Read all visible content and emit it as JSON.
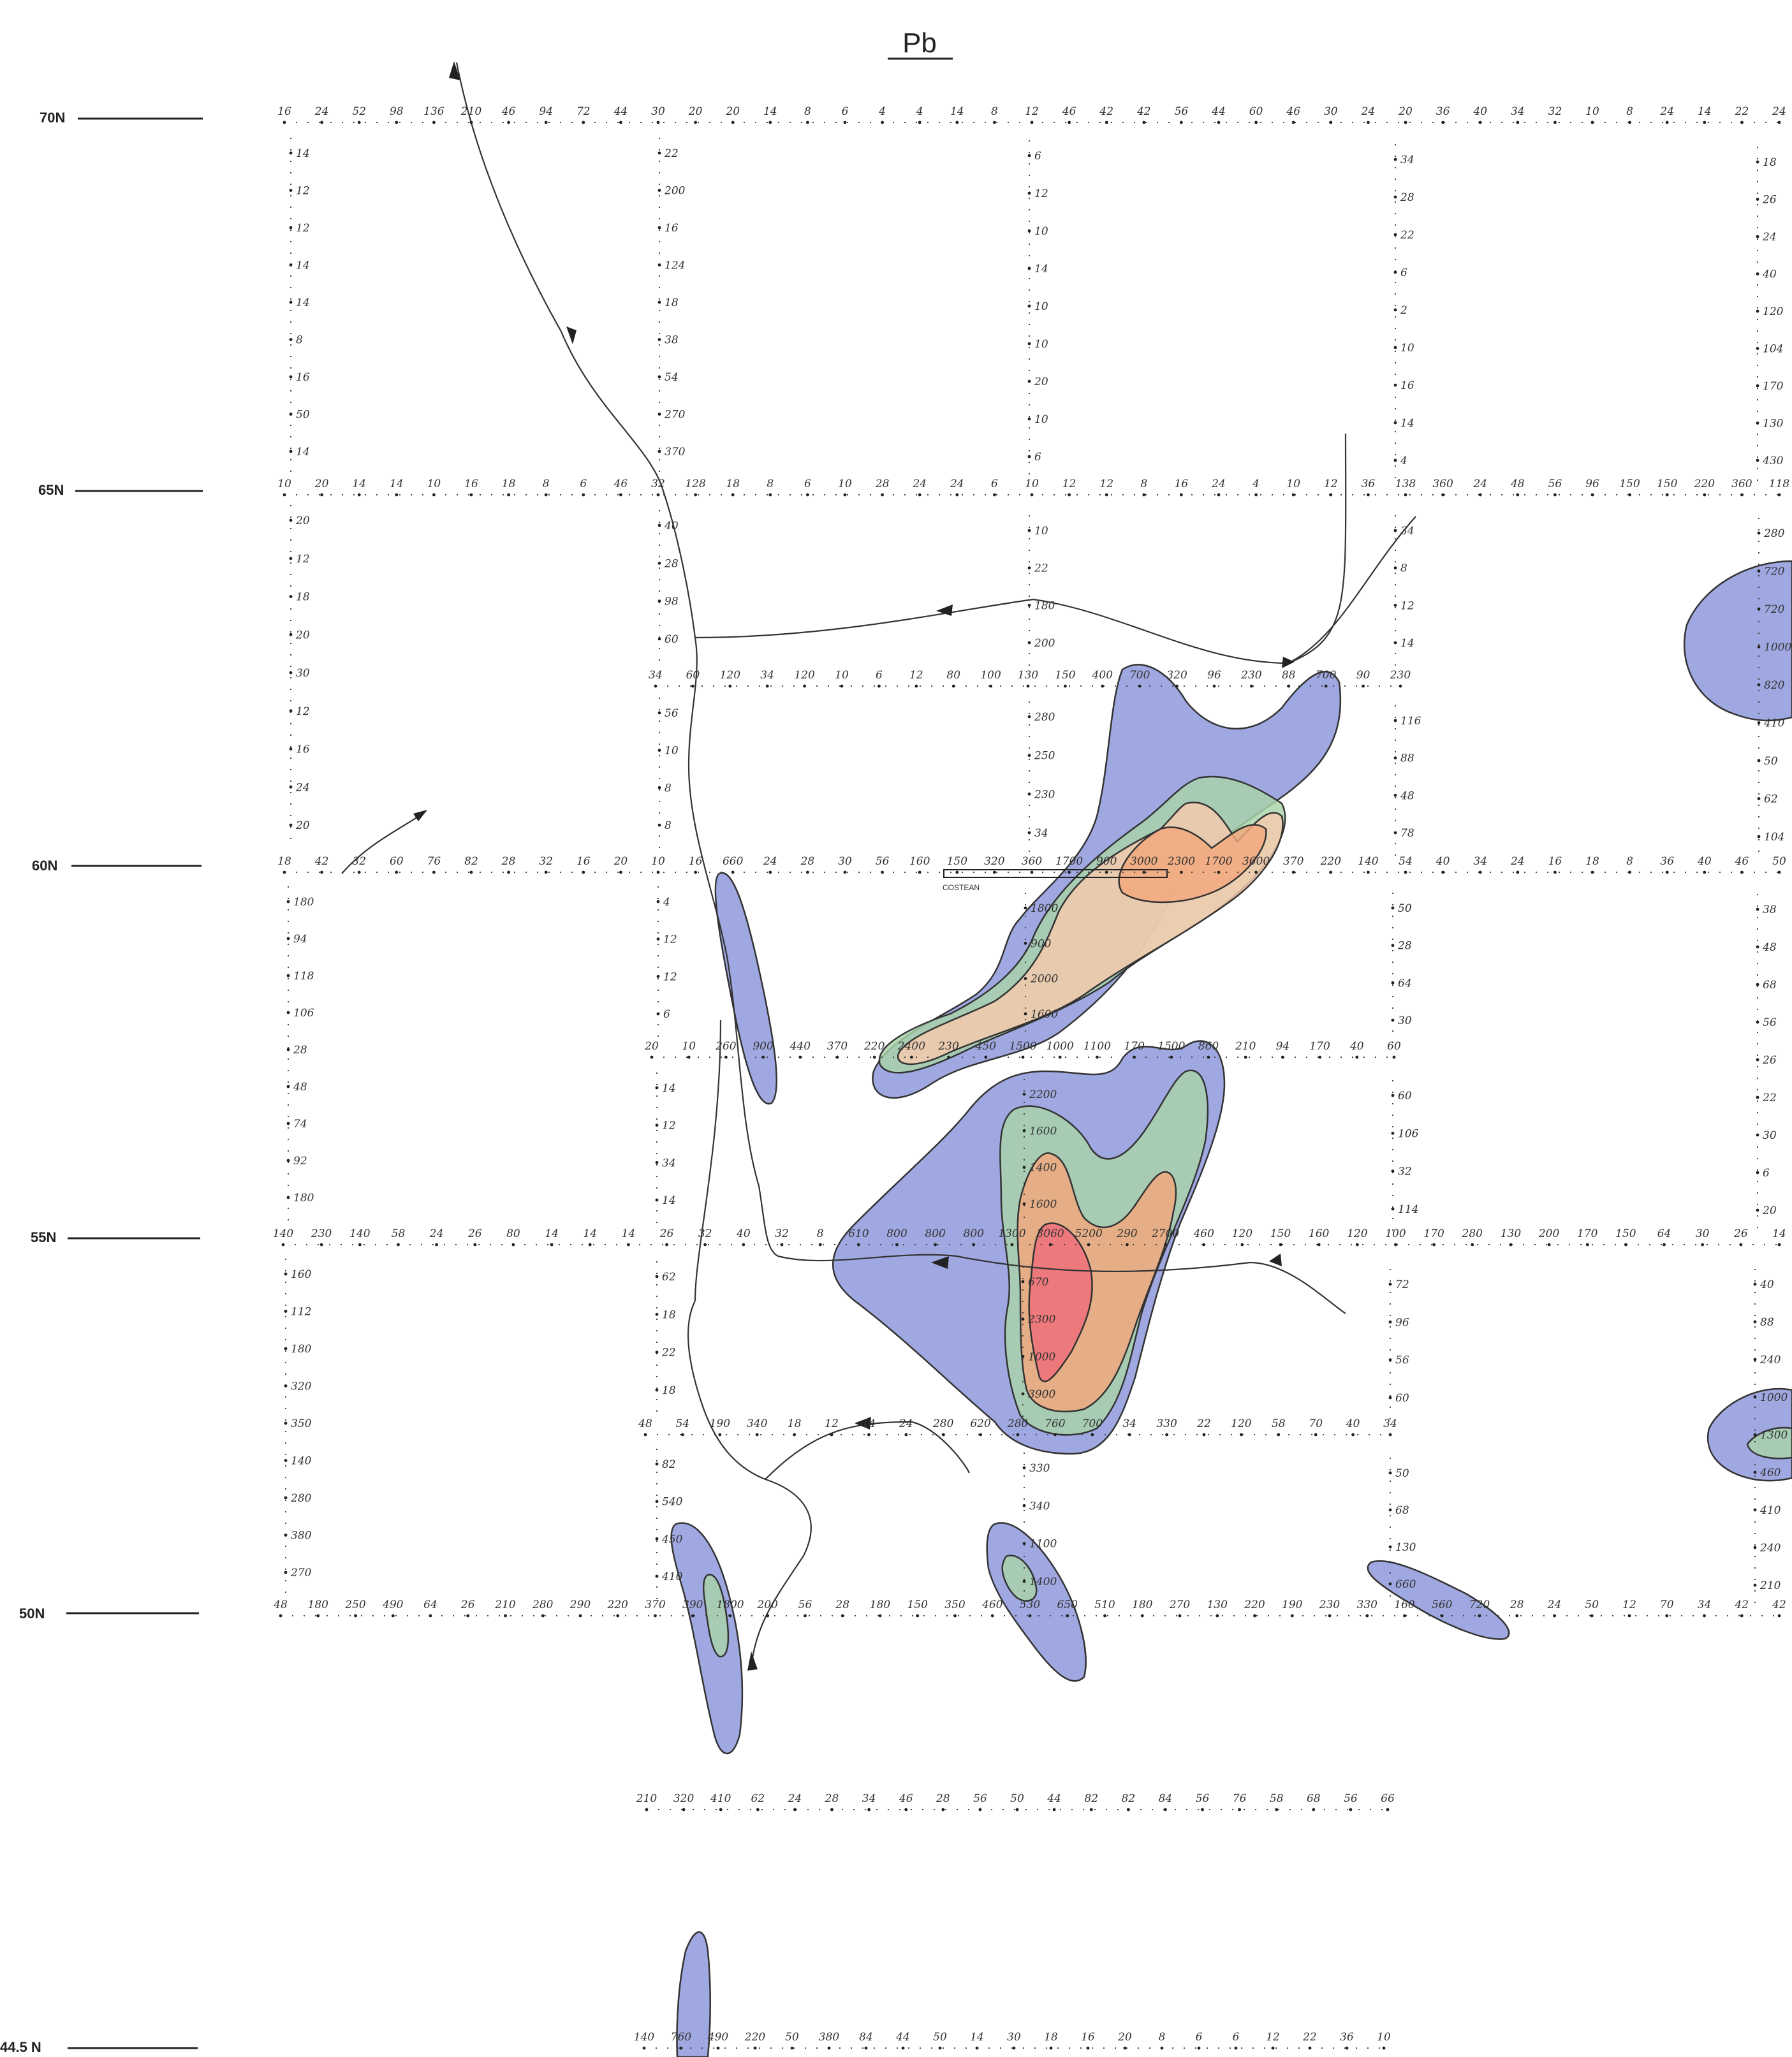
{
  "title": "Pb",
  "latitudes": [
    {
      "label": "70N"
    },
    {
      "label": "65N"
    },
    {
      "label": "60N"
    },
    {
      "label": "55N"
    },
    {
      "label": "50N"
    },
    {
      "label": "44.5 N"
    }
  ],
  "costean_label": "COSTEAN",
  "colors": {
    "blue": "#8a95da",
    "green": "#a8d4a8",
    "orange": "#f3a77c",
    "red": "#ee6e7a",
    "ink": "#222222"
  },
  "contour_levels": [
    "blue",
    "green",
    "orange",
    "red"
  ],
  "rows": [
    {
      "name": "row-70n",
      "values": [
        "16",
        "24",
        "52",
        "98",
        "136",
        "210",
        "46",
        "94",
        "72",
        "44",
        "30",
        "20",
        "20",
        "14",
        "8",
        "6",
        "4",
        "4",
        "14",
        "8",
        "12",
        "46",
        "42",
        "42",
        "56",
        "44",
        "60",
        "46",
        "30",
        "24",
        "20",
        "36",
        "40",
        "34",
        "32",
        "10",
        "8",
        "24",
        "14",
        "22",
        "24"
      ]
    },
    {
      "name": "row-65n",
      "values": [
        "10",
        "20",
        "14",
        "14",
        "10",
        "16",
        "18",
        "8",
        "6",
        "46",
        "32",
        "128",
        "18",
        "8",
        "6",
        "10",
        "28",
        "24",
        "24",
        "6",
        "10",
        "12",
        "12",
        "8",
        "16",
        "24",
        "4",
        "10",
        "12",
        "36",
        "138",
        "360",
        "24",
        "48",
        "56",
        "96",
        "150",
        "150",
        "220",
        "360",
        "118"
      ]
    },
    {
      "name": "row-62n",
      "values": [
        "34",
        "60",
        "120",
        "34",
        "120",
        "10",
        "6",
        "12",
        "80",
        "100",
        "130",
        "150",
        "400",
        "700",
        "320",
        "96",
        "230",
        "88",
        "700",
        "90",
        "230"
      ]
    },
    {
      "name": "row-60n",
      "values": [
        "18",
        "42",
        "32",
        "60",
        "76",
        "82",
        "28",
        "32",
        "16",
        "20",
        "10",
        "16",
        "660",
        "24",
        "28",
        "30",
        "56",
        "160",
        "150",
        "320",
        "360",
        "1700",
        "900",
        "3000",
        "2300",
        "1700",
        "3600",
        "370",
        "220",
        "140",
        "54",
        "40",
        "34",
        "24",
        "16",
        "18",
        "8",
        "36",
        "40",
        "46",
        "50"
      ]
    },
    {
      "name": "row-57n",
      "values": [
        "20",
        "10",
        "260",
        "900",
        "440",
        "370",
        "220",
        "2400",
        "230",
        "450",
        "1500",
        "1000",
        "1100",
        "170",
        "1500",
        "860",
        "210",
        "94",
        "170",
        "40",
        "60"
      ]
    },
    {
      "name": "row-55n",
      "values": [
        "140",
        "230",
        "140",
        "58",
        "24",
        "26",
        "80",
        "14",
        "14",
        "14",
        "26",
        "32",
        "40",
        "32",
        "8",
        "610",
        "800",
        "800",
        "800",
        "1300",
        "3060",
        "5200",
        "290",
        "2700",
        "460",
        "120",
        "150",
        "160",
        "120",
        "100",
        "170",
        "280",
        "130",
        "200",
        "170",
        "150",
        "64",
        "30",
        "26",
        "14"
      ]
    },
    {
      "name": "row-52n",
      "values": [
        "48",
        "54",
        "190",
        "340",
        "18",
        "12",
        "14",
        "24",
        "280",
        "620",
        "280",
        "760",
        "700",
        "34",
        "330",
        "22",
        "120",
        "58",
        "70",
        "40",
        "34"
      ]
    },
    {
      "name": "row-50n",
      "values": [
        "48",
        "180",
        "250",
        "490",
        "64",
        "26",
        "210",
        "280",
        "290",
        "220",
        "370",
        "390",
        "1800",
        "200",
        "56",
        "28",
        "180",
        "150",
        "350",
        "460",
        "530",
        "650",
        "510",
        "180",
        "270",
        "130",
        "220",
        "190",
        "230",
        "330",
        "160",
        "560",
        "720",
        "28",
        "24",
        "50",
        "12",
        "70",
        "34",
        "42",
        "42"
      ]
    },
    {
      "name": "row-47n",
      "values": [
        "210",
        "320",
        "410",
        "62",
        "24",
        "28",
        "34",
        "46",
        "28",
        "56",
        "50",
        "44",
        "82",
        "82",
        "84",
        "56",
        "76",
        "58",
        "68",
        "56",
        "66"
      ]
    },
    {
      "name": "row-44n",
      "values": [
        "140",
        "760",
        "490",
        "220",
        "50",
        "380",
        "84",
        "44",
        "50",
        "14",
        "30",
        "18",
        "16",
        "20",
        "8",
        "6",
        "6",
        "12",
        "22",
        "36",
        "10"
      ]
    }
  ],
  "columns": [
    {
      "name": "col-a",
      "values": [
        "14",
        "12",
        "12",
        "14",
        "14",
        "8",
        "16",
        "50",
        "14"
      ]
    },
    {
      "name": "col-b",
      "values": [
        "22",
        "200",
        "16",
        "124",
        "18",
        "38",
        "54",
        "270",
        "370"
      ]
    },
    {
      "name": "col-c",
      "values": [
        "6",
        "12",
        "10",
        "14",
        "10",
        "10",
        "20",
        "10",
        "6"
      ]
    },
    {
      "name": "col-d",
      "values": [
        "34",
        "28",
        "22",
        "6",
        "2",
        "10",
        "16",
        "14",
        "4"
      ]
    },
    {
      "name": "col-e",
      "values": [
        "18",
        "26",
        "24",
        "40",
        "120",
        "104",
        "170",
        "130",
        "430"
      ]
    },
    {
      "name": "col-a2",
      "values": [
        "20",
        "12",
        "18",
        "20",
        "30",
        "12",
        "16",
        "24",
        "20"
      ]
    },
    {
      "name": "col-b2",
      "values": [
        "40",
        "28",
        "98",
        "60"
      ]
    },
    {
      "name": "col-b3",
      "values": [
        "56",
        "10",
        "8",
        "8"
      ]
    },
    {
      "name": "col-c2",
      "values": [
        "10",
        "22",
        "180",
        "200"
      ]
    },
    {
      "name": "col-c3",
      "values": [
        "280",
        "250",
        "230",
        "34"
      ]
    },
    {
      "name": "col-d2",
      "values": [
        "34",
        "8",
        "12",
        "14"
      ]
    },
    {
      "name": "col-d3",
      "values": [
        "116",
        "88",
        "48",
        "78"
      ]
    },
    {
      "name": "col-e2",
      "values": [
        "280",
        "720",
        "720",
        "1000",
        "820",
        "410",
        "50",
        "62",
        "104"
      ]
    },
    {
      "name": "col-a3",
      "values": [
        "180",
        "94",
        "118",
        "106",
        "28",
        "48",
        "74",
        "92",
        "180"
      ]
    },
    {
      "name": "col-b4",
      "values": [
        "4",
        "12",
        "12",
        "6"
      ]
    },
    {
      "name": "col-b5",
      "values": [
        "14",
        "12",
        "34",
        "14"
      ]
    },
    {
      "name": "col-c4",
      "values": [
        "1800",
        "900",
        "2000",
        "1600"
      ]
    },
    {
      "name": "col-c5",
      "values": [
        "2200",
        "1600",
        "1400",
        "1600"
      ]
    },
    {
      "name": "col-d4",
      "values": [
        "50",
        "28",
        "64",
        "30"
      ]
    },
    {
      "name": "col-d5",
      "values": [
        "60",
        "106",
        "32",
        "114"
      ]
    },
    {
      "name": "col-e3",
      "values": [
        "38",
        "48",
        "68",
        "56",
        "26",
        "22",
        "30",
        "6",
        "20"
      ]
    },
    {
      "name": "col-a4",
      "values": [
        "160",
        "112",
        "180",
        "320",
        "350",
        "140",
        "280",
        "380",
        "270"
      ]
    },
    {
      "name": "col-b6",
      "values": [
        "62",
        "18",
        "22",
        "18"
      ]
    },
    {
      "name": "col-b7",
      "values": [
        "82",
        "540",
        "450",
        "410"
      ]
    },
    {
      "name": "col-c6",
      "values": [
        "670",
        "2300",
        "1000",
        "3900"
      ]
    },
    {
      "name": "col-c7",
      "values": [
        "330",
        "340",
        "1100",
        "1400"
      ]
    },
    {
      "name": "col-d6",
      "values": [
        "72",
        "96",
        "56",
        "60"
      ]
    },
    {
      "name": "col-d7",
      "values": [
        "50",
        "68",
        "130",
        "660"
      ]
    },
    {
      "name": "col-e4",
      "values": [
        "40",
        "88",
        "240",
        "1000",
        "1300",
        "460",
        "410",
        "240",
        "210"
      ]
    }
  ]
}
